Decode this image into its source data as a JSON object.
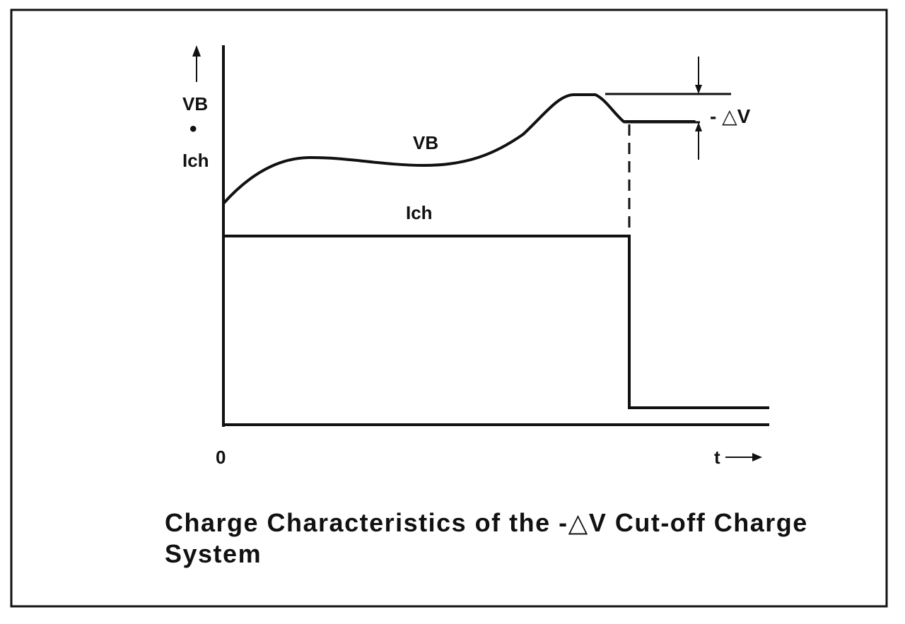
{
  "diagram": {
    "y_axis_label_top": "VB",
    "y_axis_label_dot": "•",
    "y_axis_label_bottom": "Ich",
    "curve_label_vb": "VB",
    "curve_label_ich": "Ich",
    "delta_v_label": "- △V",
    "origin_label": "0",
    "x_axis_label": "t",
    "caption": "Charge Characteristics of the -△V Cut-off Charge System"
  },
  "colors": {
    "ink": "#111111",
    "background": "#ffffff"
  }
}
